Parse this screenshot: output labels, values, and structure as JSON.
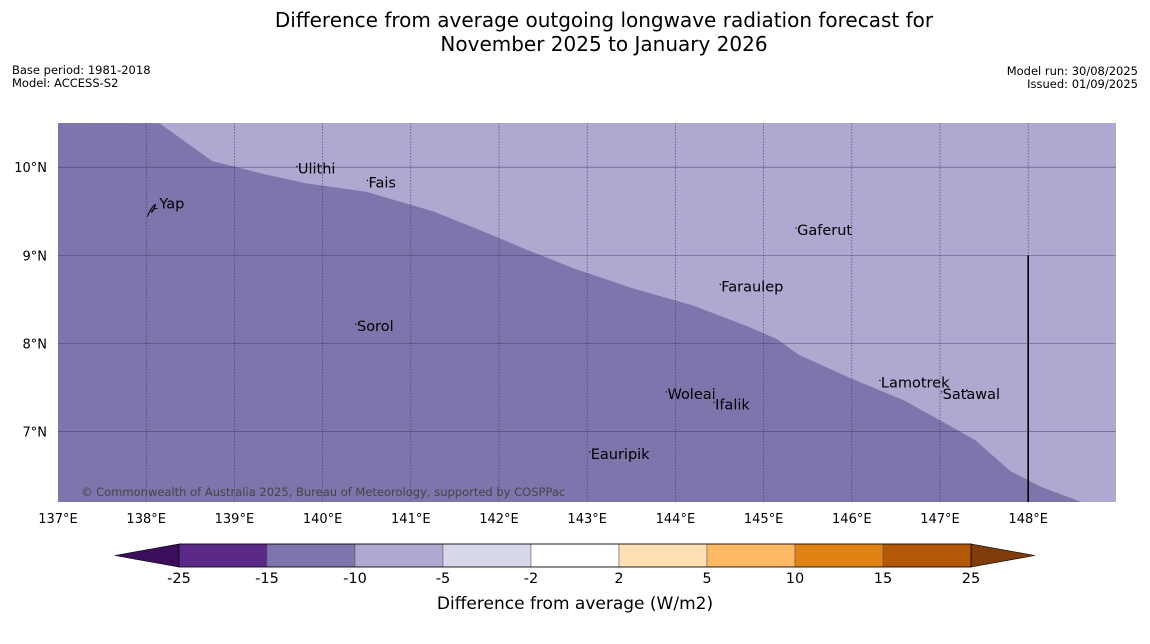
{
  "title_line1": "Difference from average outgoing longwave radiation forecast for",
  "title_line2": "November 2025 to January 2026",
  "base_period": "Base period: 1981-2018",
  "model": "Model: ACCESS-S2",
  "model_run": "Model run: 30/08/2025",
  "issued": "Issued: 01/09/2025",
  "copyright": "© Commonwealth of Australia 2025, Bureau of Meteorology, supported by COSPPac",
  "colorbar_label": "Difference from average (W/m2)",
  "colors": {
    "class_minus15_minus10": "#8074ac",
    "class_minus10_minus5": "#afa8d0",
    "below_minus25": "#3a0e5c",
    "above_25": "#7f3b08"
  },
  "chart_data": {
    "type": "heatmap",
    "map_extent": {
      "lon": [
        137,
        149
      ],
      "lat": [
        6.2,
        10.5
      ]
    },
    "lon_ticks": [
      {
        "value": 137,
        "label": "137°E"
      },
      {
        "value": 138,
        "label": "138°E"
      },
      {
        "value": 139,
        "label": "139°E"
      },
      {
        "value": 140,
        "label": "140°E"
      },
      {
        "value": 141,
        "label": "141°E"
      },
      {
        "value": 142,
        "label": "142°E"
      },
      {
        "value": 143,
        "label": "143°E"
      },
      {
        "value": 144,
        "label": "144°E"
      },
      {
        "value": 145,
        "label": "145°E"
      },
      {
        "value": 146,
        "label": "146°E"
      },
      {
        "value": 147,
        "label": "147°E"
      },
      {
        "value": 148,
        "label": "148°E"
      }
    ],
    "lat_ticks": [
      {
        "value": 10,
        "label": "10°N"
      },
      {
        "value": 9,
        "label": "9°N"
      },
      {
        "value": 8,
        "label": "8°N"
      },
      {
        "value": 7,
        "label": "7°N"
      }
    ],
    "contour_boundary": [
      [
        138.15,
        10.5
      ],
      [
        138.75,
        10.07
      ],
      [
        139.3,
        9.93
      ],
      [
        139.8,
        9.82
      ],
      [
        140.5,
        9.72
      ],
      [
        141.25,
        9.5
      ],
      [
        141.8,
        9.28
      ],
      [
        142.3,
        9.07
      ],
      [
        142.85,
        8.85
      ],
      [
        143.5,
        8.63
      ],
      [
        144.2,
        8.43
      ],
      [
        144.8,
        8.2
      ],
      [
        145.15,
        8.05
      ],
      [
        145.4,
        7.87
      ],
      [
        146.0,
        7.6
      ],
      [
        146.6,
        7.35
      ],
      [
        147.05,
        7.1
      ],
      [
        147.4,
        6.9
      ],
      [
        147.8,
        6.55
      ],
      [
        148.15,
        6.37
      ],
      [
        148.6,
        6.2
      ]
    ],
    "regions": [
      {
        "side": "southwest",
        "range": [
          -15,
          -10
        ]
      },
      {
        "side": "northeast",
        "range": [
          -10,
          -5
        ]
      }
    ],
    "places": [
      {
        "name": "Yap",
        "lon": 138.15,
        "lat": 9.53
      },
      {
        "name": "Ulithi",
        "lon": 139.72,
        "lat": 9.93
      },
      {
        "name": "Fais",
        "lon": 140.52,
        "lat": 9.77
      },
      {
        "name": "Gaferut",
        "lon": 145.38,
        "lat": 9.23
      },
      {
        "name": "Faraulep",
        "lon": 144.52,
        "lat": 8.59
      },
      {
        "name": "Sorol",
        "lon": 140.39,
        "lat": 8.14
      },
      {
        "name": "Woleai",
        "lon": 143.91,
        "lat": 7.37
      },
      {
        "name": "Ifalik",
        "lon": 144.45,
        "lat": 7.25
      },
      {
        "name": "Lamotrek",
        "lon": 146.33,
        "lat": 7.5
      },
      {
        "name": "Satawal",
        "lon": 147.03,
        "lat": 7.37
      },
      {
        "name": "Eauripik",
        "lon": 143.04,
        "lat": 6.69
      }
    ],
    "meridian_line": {
      "lon": 148,
      "lat": [
        6.2,
        9.0
      ]
    },
    "legend": {
      "ticks": [
        "-25",
        "-15",
        "-10",
        "-5",
        "-2",
        "2",
        "5",
        "10",
        "15",
        "25"
      ],
      "bins": [
        {
          "range": [
            -25,
            -15
          ],
          "color": "#5a2a86"
        },
        {
          "range": [
            -15,
            -10
          ],
          "color": "#8074ac"
        },
        {
          "range": [
            -10,
            -5
          ],
          "color": "#afa8d0"
        },
        {
          "range": [
            -5,
            -2
          ],
          "color": "#d8d8eb"
        },
        {
          "range": [
            -2,
            2
          ],
          "color": "#ffffff"
        },
        {
          "range": [
            2,
            5
          ],
          "color": "#fee0b6"
        },
        {
          "range": [
            5,
            10
          ],
          "color": "#fdb863"
        },
        {
          "range": [
            10,
            15
          ],
          "color": "#e08214"
        },
        {
          "range": [
            15,
            25
          ],
          "color": "#b35806"
        }
      ]
    }
  }
}
